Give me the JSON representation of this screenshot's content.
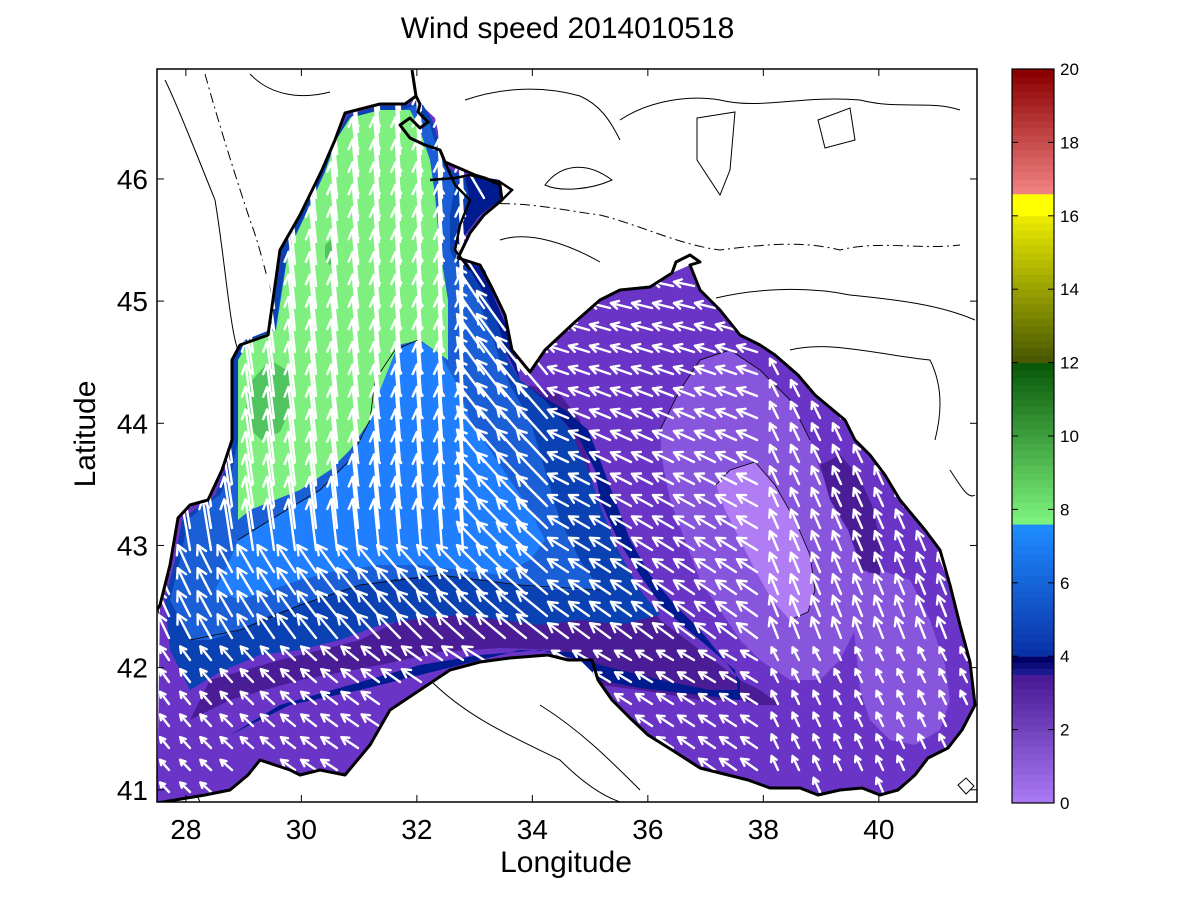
{
  "title": "Wind speed 2014010518",
  "xlabel": "Longitude",
  "ylabel": "Latitude",
  "x_ticks": [
    "28",
    "30",
    "32",
    "34",
    "36",
    "38",
    "40"
  ],
  "y_ticks": [
    "41",
    "42",
    "43",
    "44",
    "45",
    "46"
  ],
  "colorbar": {
    "min": 0,
    "max": 20,
    "ticks": [
      "0",
      "2",
      "4",
      "6",
      "8",
      "10",
      "12",
      "14",
      "16",
      "18",
      "20"
    ],
    "segments": [
      {
        "from": 0,
        "to": 3.5,
        "color_low": "#a878f2",
        "color_high": "#4b1a96"
      },
      {
        "from": 3.5,
        "to": 4,
        "color_low": "#1a1a90",
        "color_high": "#000066"
      },
      {
        "from": 4,
        "to": 7.6,
        "color_low": "#0a32a8",
        "color_high": "#1e8cff"
      },
      {
        "from": 7.6,
        "to": 12,
        "color_low": "#7cf27c",
        "color_high": "#0a5a0a"
      },
      {
        "from": 12,
        "to": 16,
        "color_low": "#4a5a00",
        "color_high": "#e8e800"
      },
      {
        "from": 16,
        "to": 16.6,
        "color_low": "#ffff00",
        "color_high": "#ffff00"
      },
      {
        "from": 16.6,
        "to": 20,
        "color_low": "#f08080",
        "color_high": "#8b0000"
      }
    ]
  },
  "map": {
    "lon_range": [
      27.5,
      41.7
    ],
    "lat_range": [
      40.9,
      46.9
    ],
    "colors": {
      "green_light": "#7ff07f",
      "green_dark": "#4fc45f",
      "blue_light": "#1f7fff",
      "blue_mid": "#1a5fd6",
      "blue": "#0a42b4",
      "navy": "#001a8f",
      "purple_dark": "#4a1c96",
      "purple": "#6a35c6",
      "purple_light": "#8855dd",
      "lavender": "#b07df5",
      "arrow": "#ffffff",
      "contour": "#000000"
    }
  }
}
